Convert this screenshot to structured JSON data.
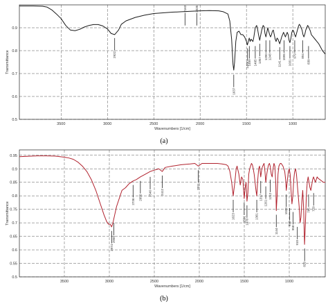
{
  "chart_data": [
    {
      "type": "line",
      "panel": "a",
      "caption": "(a)",
      "xlabel": "Wavenumbers [1/cm]",
      "ylabel": "Transmittance",
      "xlim": [
        3950,
        650
      ],
      "ylim": [
        0.5,
        1.0
      ],
      "xticks": [
        3500,
        3000,
        2500,
        2000,
        1500,
        1000
      ],
      "yticks": [
        0.5,
        0.6,
        0.7,
        0.8,
        0.9
      ],
      "ytick_labels": [
        "0.5",
        "0.6",
        "0.7",
        "0.8",
        "0.9"
      ],
      "grid": "dashed",
      "line_color": "#1a1a1a",
      "series": [
        {
          "x": [
            3950,
            3800,
            3700,
            3650,
            3600,
            3550,
            3500,
            3450,
            3400,
            3350,
            3300,
            3250,
            3200,
            3150,
            3100,
            3050,
            3000,
            2960,
            2922,
            2880,
            2850,
            2800,
            2700,
            2600,
            2500,
            2400,
            2300,
            2200,
            2100,
            2000,
            1900,
            1800,
            1750,
            1700,
            1680,
            1660,
            1645,
            1637,
            1628,
            1615,
            1600,
            1580,
            1560,
            1540,
            1520,
            1500,
            1490,
            1480,
            1470,
            1460,
            1450,
            1440,
            1430,
            1420,
            1405,
            1390,
            1380,
            1370,
            1357,
            1345,
            1335,
            1320,
            1310,
            1300,
            1290,
            1280,
            1270,
            1260,
            1250,
            1240,
            1230,
            1220,
            1210,
            1200,
            1190,
            1180,
            1170,
            1160,
            1150,
            1141,
            1130,
            1120,
            1110,
            1100,
            1090,
            1080,
            1070,
            1060,
            1050,
            1040,
            1031,
            1020,
            1010,
            1000,
            990,
            980,
            970,
            960,
            950,
            940,
            930,
            920,
            910,
            900,
            890,
            880,
            870,
            860,
            850,
            840,
            830,
            820,
            810,
            800,
            780,
            760,
            740,
            720,
            700,
            680,
            650
          ],
          "y": [
            0.995,
            0.995,
            0.994,
            0.99,
            0.978,
            0.96,
            0.94,
            0.91,
            0.89,
            0.887,
            0.893,
            0.903,
            0.91,
            0.914,
            0.914,
            0.908,
            0.895,
            0.875,
            0.87,
            0.89,
            0.915,
            0.93,
            0.945,
            0.955,
            0.962,
            0.965,
            0.968,
            0.97,
            0.972,
            0.974,
            0.975,
            0.974,
            0.97,
            0.96,
            0.93,
            0.85,
            0.74,
            0.715,
            0.75,
            0.84,
            0.88,
            0.885,
            0.87,
            0.87,
            0.86,
            0.84,
            0.825,
            0.84,
            0.855,
            0.84,
            0.85,
            0.845,
            0.84,
            0.86,
            0.9,
            0.91,
            0.895,
            0.87,
            0.845,
            0.87,
            0.89,
            0.91,
            0.905,
            0.875,
            0.86,
            0.88,
            0.9,
            0.885,
            0.87,
            0.86,
            0.87,
            0.885,
            0.89,
            0.87,
            0.85,
            0.84,
            0.855,
            0.85,
            0.84,
            0.83,
            0.845,
            0.86,
            0.87,
            0.88,
            0.87,
            0.86,
            0.87,
            0.88,
            0.87,
            0.845,
            0.835,
            0.855,
            0.88,
            0.89,
            0.885,
            0.87,
            0.86,
            0.875,
            0.89,
            0.905,
            0.915,
            0.91,
            0.9,
            0.89,
            0.87,
            0.86,
            0.872,
            0.89,
            0.9,
            0.91,
            0.905,
            0.895,
            0.885,
            0.87,
            0.86,
            0.85,
            0.84,
            0.83,
            0.815,
            0.8,
            0.785
          ]
        }
      ],
      "annotations": [
        {
          "x": 2922,
          "label": "2922",
          "y": 0.855,
          "dir": "down"
        },
        {
          "x": 2163,
          "label": "2163",
          "y": 0.91,
          "dir": "up"
        },
        {
          "x": 2035,
          "label": "2035",
          "y": 0.91,
          "dir": "up"
        },
        {
          "x": 1637,
          "label": "1637",
          "y": 0.695,
          "dir": "down"
        },
        {
          "x": 1488,
          "label": "1488",
          "y": 0.81,
          "dir": "down"
        },
        {
          "x": 1469,
          "label": "1469",
          "y": 0.82,
          "dir": "down"
        },
        {
          "x": 1405,
          "label": "1405",
          "y": 0.82,
          "dir": "down"
        },
        {
          "x": 1357,
          "label": "1357",
          "y": 0.83,
          "dir": "down"
        },
        {
          "x": 1290,
          "label": "1290",
          "y": 0.845,
          "dir": "down"
        },
        {
          "x": 1248,
          "label": "1248",
          "y": 0.845,
          "dir": "down"
        },
        {
          "x": 1141,
          "label": "1141",
          "y": 0.815,
          "dir": "down"
        },
        {
          "x": 1095,
          "label": "1095",
          "y": 0.845,
          "dir": "down"
        },
        {
          "x": 1031,
          "label": "1031",
          "y": 0.82,
          "dir": "down"
        },
        {
          "x": 979,
          "label": "979",
          "y": 0.845,
          "dir": "down"
        },
        {
          "x": 894,
          "label": "894",
          "y": 0.845,
          "dir": "down"
        },
        {
          "x": 830,
          "label": "830",
          "y": 0.82,
          "dir": "down"
        }
      ]
    },
    {
      "type": "line",
      "panel": "b",
      "caption": "(b)",
      "xlabel": "Wavenumbers [1/cm]",
      "ylabel": "Transmittance",
      "xlim": [
        4000,
        600
      ],
      "ylim": [
        0.5,
        0.97
      ],
      "xticks": [
        3500,
        3000,
        2500,
        2000,
        1500,
        1000
      ],
      "yticks": [
        0.5,
        0.55,
        0.6,
        0.65,
        0.7,
        0.75,
        0.8,
        0.85,
        0.9,
        0.95
      ],
      "ytick_labels": [
        "0.5",
        "0.55",
        "0.6",
        "0.65",
        "0.7",
        "0.75",
        "0.8",
        "0.85",
        "0.9",
        "0.95"
      ],
      "grid": "dashed",
      "line_color": "#b0202c",
      "series": [
        {
          "x": [
            4000,
            3800,
            3700,
            3600,
            3500,
            3450,
            3400,
            3350,
            3300,
            3250,
            3200,
            3150,
            3100,
            3060,
            3030,
            3010,
            2990,
            2974,
            2960,
            2950,
            2940,
            2920,
            2900,
            2880,
            2860,
            2820,
            2780,
            2736,
            2700,
            2655,
            2600,
            2546,
            2500,
            2450,
            2412,
            2380,
            2300,
            2200,
            2100,
            2050,
            2011,
            1970,
            1900,
            1800,
            1750,
            1700,
            1680,
            1660,
            1640,
            1623,
            1605,
            1590,
            1580,
            1560,
            1545,
            1530,
            1515,
            1501,
            1490,
            1480,
            1470,
            1460,
            1450,
            1440,
            1430,
            1420,
            1410,
            1400,
            1390,
            1380,
            1370,
            1361,
            1350,
            1340,
            1330,
            1317,
            1305,
            1295,
            1280,
            1270,
            1261,
            1250,
            1240,
            1230,
            1220,
            1212,
            1200,
            1190,
            1180,
            1170,
            1160,
            1150,
            1144,
            1135,
            1125,
            1115,
            1100,
            1090,
            1080,
            1070,
            1060,
            1050,
            1040,
            1033,
            1020,
            1010,
            1000,
            990,
            980,
            970,
            960,
            950,
            940,
            930,
            920,
            910,
            900,
            890,
            880,
            870,
            860,
            850,
            840,
            830,
            820,
            810,
            800,
            790,
            780,
            770,
            760,
            750,
            740,
            730,
            720,
            710,
            700,
            690,
            680,
            660,
            640,
            620,
            600
          ],
          "y": [
            0.945,
            0.948,
            0.948,
            0.947,
            0.943,
            0.94,
            0.935,
            0.925,
            0.91,
            0.89,
            0.86,
            0.82,
            0.77,
            0.73,
            0.705,
            0.695,
            0.695,
            0.685,
            0.7,
            0.715,
            0.73,
            0.76,
            0.78,
            0.8,
            0.82,
            0.83,
            0.845,
            0.855,
            0.86,
            0.87,
            0.88,
            0.89,
            0.895,
            0.9,
            0.89,
            0.905,
            0.91,
            0.915,
            0.918,
            0.92,
            0.91,
            0.92,
            0.92,
            0.92,
            0.918,
            0.915,
            0.91,
            0.89,
            0.85,
            0.8,
            0.85,
            0.9,
            0.91,
            0.88,
            0.84,
            0.87,
            0.86,
            0.79,
            0.83,
            0.85,
            0.78,
            0.81,
            0.88,
            0.9,
            0.91,
            0.92,
            0.915,
            0.9,
            0.88,
            0.85,
            0.82,
            0.8,
            0.86,
            0.9,
            0.91,
            0.87,
            0.9,
            0.91,
            0.92,
            0.89,
            0.85,
            0.88,
            0.9,
            0.915,
            0.92,
            0.91,
            0.88,
            0.87,
            0.9,
            0.92,
            0.91,
            0.85,
            0.745,
            0.8,
            0.88,
            0.91,
            0.92,
            0.92,
            0.915,
            0.91,
            0.9,
            0.89,
            0.86,
            0.82,
            0.86,
            0.89,
            0.9,
            0.88,
            0.82,
            0.77,
            0.8,
            0.86,
            0.89,
            0.9,
            0.88,
            0.84,
            0.8,
            0.76,
            0.7,
            0.72,
            0.78,
            0.82,
            0.75,
            0.62,
            0.7,
            0.8,
            0.85,
            0.87,
            0.85,
            0.83,
            0.82,
            0.84,
            0.86,
            0.87,
            0.86,
            0.85,
            0.86,
            0.87,
            0.865,
            0.86,
            0.855,
            0.85,
            0.85
          ]
        }
      ],
      "annotations": [
        {
          "x": 2974,
          "label": "2974",
          "y": 0.67,
          "dir": "down"
        },
        {
          "x": 2950,
          "label": "2950",
          "y": 0.7,
          "dir": "down"
        },
        {
          "x": 2736,
          "label": "2736",
          "y": 0.84,
          "dir": "down"
        },
        {
          "x": 2655,
          "label": "2655",
          "y": 0.855,
          "dir": "down"
        },
        {
          "x": 2546,
          "label": "2546",
          "y": 0.87,
          "dir": "down"
        },
        {
          "x": 2412,
          "label": "2412",
          "y": 0.875,
          "dir": "down"
        },
        {
          "x": 2011,
          "label": "2011",
          "y": 0.895,
          "dir": "down"
        },
        {
          "x": 1623,
          "label": "1623",
          "y": 0.785,
          "dir": "down"
        },
        {
          "x": 1501,
          "label": "1501",
          "y": 0.775,
          "dir": "down"
        },
        {
          "x": 1470,
          "label": "1470",
          "y": 0.765,
          "dir": "down"
        },
        {
          "x": 1361,
          "label": "1361",
          "y": 0.785,
          "dir": "down"
        },
        {
          "x": 1317,
          "label": "1317",
          "y": 0.855,
          "dir": "down"
        },
        {
          "x": 1261,
          "label": "1261",
          "y": 0.835,
          "dir": "down"
        },
        {
          "x": 1212,
          "label": "1212",
          "y": 0.86,
          "dir": "down"
        },
        {
          "x": 1144,
          "label": "1144",
          "y": 0.73,
          "dir": "down"
        },
        {
          "x": 1033,
          "label": "1033",
          "y": 0.805,
          "dir": "down"
        },
        {
          "x": 995,
          "label": "995",
          "y": 0.755,
          "dir": "down"
        },
        {
          "x": 958,
          "label": "958",
          "y": 0.74,
          "dir": "down"
        },
        {
          "x": 910,
          "label": "910",
          "y": 0.685,
          "dir": "down"
        },
        {
          "x": 829,
          "label": "829",
          "y": 0.605,
          "dir": "down"
        },
        {
          "x": 785,
          "label": "785",
          "y": 0.805,
          "dir": "down"
        },
        {
          "x": 729,
          "label": "729",
          "y": 0.81,
          "dir": "down"
        }
      ]
    }
  ]
}
